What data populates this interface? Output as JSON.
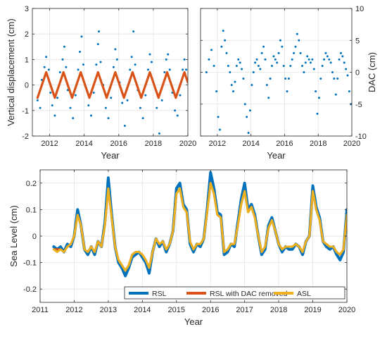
{
  "chart_data": [
    {
      "type": "scatter",
      "panel": "top-left",
      "xlabel": "Year",
      "ylabel": "Vertical displacement (cm)",
      "xlim": [
        2011,
        2020
      ],
      "ylim": [
        -2,
        3
      ],
      "xticks": [
        2012,
        2014,
        2016,
        2018,
        2020
      ],
      "yticks": [
        -2,
        -1,
        0,
        1,
        2,
        3
      ],
      "grid": true,
      "series": [
        {
          "role": "observations",
          "marker": "dot",
          "color": "#0072BD",
          "data": [
            [
              2011.3,
              -0.6
            ],
            [
              2011.45,
              -0.9
            ],
            [
              2011.55,
              0.2
            ],
            [
              2011.7,
              0.7
            ],
            [
              2011.8,
              1.1
            ],
            [
              2011.95,
              0.6
            ],
            [
              2012.05,
              -0.3
            ],
            [
              2012.15,
              -0.8
            ],
            [
              2012.3,
              -1.2
            ],
            [
              2012.45,
              -0.5
            ],
            [
              2012.6,
              0.5
            ],
            [
              2012.75,
              1.0
            ],
            [
              2012.85,
              1.5
            ],
            [
              2012.95,
              0.7
            ],
            [
              2013.05,
              -0.2
            ],
            [
              2013.2,
              -0.9
            ],
            [
              2013.35,
              -1.3
            ],
            [
              2013.5,
              -0.4
            ],
            [
              2013.65,
              0.6
            ],
            [
              2013.75,
              1.3
            ],
            [
              2013.85,
              1.9
            ],
            [
              2013.95,
              0.8
            ],
            [
              2014.1,
              -0.1
            ],
            [
              2014.25,
              -0.8
            ],
            [
              2014.4,
              -1.2
            ],
            [
              2014.55,
              -0.3
            ],
            [
              2014.7,
              0.8
            ],
            [
              2014.8,
              1.6
            ],
            [
              2014.85,
              2.1
            ],
            [
              2014.95,
              0.9
            ],
            [
              2015.1,
              0.0
            ],
            [
              2015.25,
              -0.9
            ],
            [
              2015.4,
              -1.3
            ],
            [
              2015.55,
              -0.5
            ],
            [
              2015.7,
              0.7
            ],
            [
              2015.8,
              1.4
            ],
            [
              2015.9,
              1.0
            ],
            [
              2016.05,
              0.1
            ],
            [
              2016.2,
              -0.7
            ],
            [
              2016.35,
              -1.6
            ],
            [
              2016.5,
              -0.6
            ],
            [
              2016.65,
              0.6
            ],
            [
              2016.75,
              1.1
            ],
            [
              2016.85,
              2.1
            ],
            [
              2016.95,
              0.8
            ],
            [
              2017.1,
              -0.2
            ],
            [
              2017.25,
              -0.9
            ],
            [
              2017.4,
              -1.3
            ],
            [
              2017.55,
              -0.4
            ],
            [
              2017.7,
              0.6
            ],
            [
              2017.8,
              1.2
            ],
            [
              2017.9,
              0.9
            ],
            [
              2018.05,
              0.0
            ],
            [
              2018.2,
              -0.9
            ],
            [
              2018.35,
              -1.9
            ],
            [
              2018.5,
              -0.6
            ],
            [
              2018.65,
              0.5
            ],
            [
              2018.75,
              1.0
            ],
            [
              2018.85,
              1.2
            ],
            [
              2018.95,
              0.6
            ],
            [
              2019.1,
              -0.3
            ],
            [
              2019.25,
              -1.0
            ],
            [
              2019.4,
              -1.2
            ],
            [
              2019.55,
              -0.4
            ],
            [
              2019.7,
              0.6
            ],
            [
              2019.8,
              1.0
            ],
            [
              2019.9,
              0.6
            ],
            [
              2020.0,
              0.1
            ]
          ]
        },
        {
          "role": "fit",
          "type": "line",
          "color": "#D95319",
          "x": [
            2011.3,
            2011.55,
            2011.8,
            2012.05,
            2012.3,
            2012.55,
            2012.8,
            2013.05,
            2013.3,
            2013.55,
            2013.8,
            2014.05,
            2014.3,
            2014.55,
            2014.8,
            2015.05,
            2015.3,
            2015.55,
            2015.8,
            2016.05,
            2016.3,
            2016.55,
            2016.8,
            2017.05,
            2017.3,
            2017.55,
            2017.8,
            2018.05,
            2018.3,
            2018.55,
            2018.8,
            2019.05,
            2019.3,
            2019.55,
            2019.8,
            2020.0
          ],
          "values": [
            -0.5,
            0.0,
            0.5,
            0.0,
            -0.5,
            0.0,
            0.5,
            0.0,
            -0.5,
            0.0,
            0.5,
            0.0,
            -0.5,
            0.0,
            0.5,
            0.0,
            -0.5,
            0.0,
            0.5,
            0.0,
            -0.5,
            0.0,
            0.5,
            0.0,
            -0.5,
            0.0,
            0.5,
            0.0,
            -0.5,
            0.0,
            0.5,
            0.0,
            -0.5,
            0.0,
            0.5,
            0.1
          ]
        }
      ]
    },
    {
      "type": "scatter",
      "panel": "top-right",
      "xlabel": "Year",
      "ylabel": "DAC (cm)",
      "yaxis_side": "right",
      "xlim": [
        2011,
        2020
      ],
      "ylim": [
        -10,
        10
      ],
      "xticks": [
        2012,
        2014,
        2016,
        2018,
        2020
      ],
      "yticks": [
        -10,
        -5,
        0,
        5,
        10
      ],
      "grid": true,
      "series": [
        {
          "marker": "dot",
          "color": "#0072BD",
          "x": [
            2011.35,
            2011.5,
            2011.65,
            2011.8,
            2011.95,
            2012.05,
            2012.15,
            2012.25,
            2012.35,
            2012.45,
            2012.55,
            2012.65,
            2012.75,
            2012.85,
            2012.95,
            2013.05,
            2013.15,
            2013.25,
            2013.35,
            2013.45,
            2013.55,
            2013.65,
            2013.75,
            2013.85,
            2013.95,
            2014.05,
            2014.15,
            2014.25,
            2014.35,
            2014.45,
            2014.55,
            2014.65,
            2014.75,
            2014.85,
            2014.95,
            2015.05,
            2015.15,
            2015.25,
            2015.35,
            2015.45,
            2015.55,
            2015.65,
            2015.75,
            2015.85,
            2015.95,
            2016.05,
            2016.15,
            2016.25,
            2016.35,
            2016.45,
            2016.55,
            2016.65,
            2016.75,
            2016.85,
            2016.95,
            2017.05,
            2017.15,
            2017.25,
            2017.35,
            2017.45,
            2017.55,
            2017.65,
            2017.75,
            2017.85,
            2017.95,
            2018.05,
            2018.15,
            2018.25,
            2018.35,
            2018.45,
            2018.55,
            2018.65,
            2018.75,
            2018.85,
            2018.95,
            2019.05,
            2019.15,
            2019.25,
            2019.35,
            2019.45,
            2019.55,
            2019.65,
            2019.75,
            2019.85,
            2019.95
          ],
          "values": [
            0,
            2,
            3.5,
            1,
            -3,
            -7,
            -9,
            4,
            6.5,
            5,
            3,
            1,
            0,
            -2,
            -3,
            -1.5,
            1,
            2,
            1.5,
            0.5,
            -1,
            -5,
            -7,
            -9.5,
            -6,
            -2,
            0,
            1.5,
            2,
            1,
            0.5,
            3,
            4,
            2,
            -2,
            -4,
            -1,
            1,
            2.5,
            2,
            1.5,
            3,
            5,
            4,
            1,
            -1,
            -3,
            -1,
            1,
            2,
            3,
            4,
            6,
            5,
            3,
            1,
            0,
            1.5,
            2.5,
            2,
            1.5,
            2,
            0.5,
            -3,
            -6.5,
            -4,
            -1,
            1,
            2,
            3,
            2.5,
            2,
            1.5,
            0,
            -1,
            -3.5,
            -1,
            2,
            3,
            2.5,
            1.5,
            0.5,
            -0.5,
            -3,
            -5
          ]
        }
      ]
    },
    {
      "type": "line",
      "panel": "bottom",
      "xlabel": "Year",
      "ylabel": "Sea Level (cm)",
      "xlim": [
        2011,
        2020
      ],
      "ylim": [
        -0.25,
        0.25
      ],
      "xticks": [
        2011,
        2012,
        2013,
        2014,
        2015,
        2016,
        2017,
        2018,
        2019,
        2020
      ],
      "yticks": [
        -0.2,
        -0.1,
        0,
        0.1,
        0.2
      ],
      "grid": true,
      "legend": "bottom-right",
      "x": [
        2011.4,
        2011.5,
        2011.6,
        2011.7,
        2011.8,
        2011.9,
        2012.0,
        2012.1,
        2012.2,
        2012.3,
        2012.4,
        2012.5,
        2012.6,
        2012.7,
        2012.8,
        2012.9,
        2013.0,
        2013.1,
        2013.2,
        2013.3,
        2013.4,
        2013.5,
        2013.6,
        2013.7,
        2013.8,
        2013.9,
        2014.0,
        2014.1,
        2014.2,
        2014.3,
        2014.4,
        2014.5,
        2014.6,
        2014.7,
        2014.8,
        2014.9,
        2015.0,
        2015.1,
        2015.2,
        2015.3,
        2015.4,
        2015.5,
        2015.6,
        2015.7,
        2015.8,
        2015.9,
        2016.0,
        2016.1,
        2016.2,
        2016.3,
        2016.4,
        2016.5,
        2016.6,
        2016.7,
        2016.8,
        2016.9,
        2017.0,
        2017.1,
        2017.2,
        2017.3,
        2017.4,
        2017.5,
        2017.6,
        2017.7,
        2017.8,
        2017.9,
        2018.0,
        2018.1,
        2018.2,
        2018.3,
        2018.4,
        2018.5,
        2018.6,
        2018.7,
        2018.8,
        2018.9,
        2019.0,
        2019.1,
        2019.2,
        2019.3,
        2019.4,
        2019.5,
        2019.6,
        2019.7,
        2019.8,
        2019.9,
        2020.0
      ],
      "series": [
        {
          "name": "RSL",
          "color": "#0072BD",
          "values": [
            -0.04,
            -0.05,
            -0.04,
            -0.06,
            -0.03,
            -0.04,
            0.0,
            0.1,
            0.04,
            -0.05,
            -0.07,
            -0.04,
            -0.07,
            -0.02,
            -0.04,
            0.05,
            0.22,
            0.08,
            -0.04,
            -0.1,
            -0.12,
            -0.15,
            -0.12,
            -0.08,
            -0.07,
            -0.06,
            -0.08,
            -0.1,
            -0.14,
            -0.06,
            -0.01,
            -0.04,
            -0.02,
            -0.06,
            -0.03,
            0.02,
            0.18,
            0.2,
            0.12,
            0.1,
            -0.03,
            -0.06,
            -0.03,
            -0.04,
            -0.01,
            0.1,
            0.24,
            0.18,
            0.09,
            0.08,
            -0.07,
            -0.06,
            -0.03,
            -0.04,
            0.05,
            0.14,
            0.2,
            0.1,
            0.12,
            0.08,
            0.0,
            -0.07,
            -0.05,
            0.04,
            0.07,
            0.02,
            -0.03,
            -0.06,
            -0.04,
            -0.05,
            -0.05,
            -0.03,
            -0.04,
            -0.07,
            -0.02,
            0.0,
            0.19,
            0.11,
            0.07,
            -0.02,
            -0.04,
            -0.05,
            -0.04,
            -0.07,
            -0.09,
            -0.06,
            0.1
          ]
        },
        {
          "name": "RSL with DAC removed",
          "color": "#D95319",
          "values": [
            -0.05,
            -0.05,
            -0.05,
            -0.06,
            -0.04,
            -0.03,
            0.0,
            0.08,
            0.04,
            -0.05,
            -0.06,
            -0.04,
            -0.06,
            -0.02,
            -0.04,
            0.04,
            0.18,
            0.07,
            -0.04,
            -0.09,
            -0.11,
            -0.13,
            -0.11,
            -0.07,
            -0.06,
            -0.06,
            -0.07,
            -0.09,
            -0.12,
            -0.06,
            -0.01,
            -0.03,
            -0.02,
            -0.05,
            -0.03,
            0.02,
            0.16,
            0.18,
            0.11,
            0.09,
            -0.02,
            -0.05,
            -0.03,
            -0.03,
            -0.01,
            0.09,
            0.2,
            0.16,
            0.08,
            0.07,
            -0.06,
            -0.05,
            -0.03,
            -0.03,
            0.04,
            0.12,
            0.17,
            0.09,
            0.11,
            0.07,
            0.0,
            -0.06,
            -0.04,
            0.03,
            0.06,
            0.02,
            -0.03,
            -0.05,
            -0.04,
            -0.04,
            -0.04,
            -0.03,
            -0.04,
            -0.06,
            -0.02,
            0.0,
            0.17,
            0.1,
            0.06,
            -0.02,
            -0.03,
            -0.04,
            -0.04,
            -0.06,
            -0.07,
            -0.05,
            0.08
          ]
        },
        {
          "name": "ASL",
          "color": "#EDB120",
          "values": [
            -0.05,
            -0.06,
            -0.05,
            -0.06,
            -0.04,
            -0.03,
            0.0,
            0.08,
            0.04,
            -0.05,
            -0.06,
            -0.04,
            -0.06,
            -0.02,
            -0.04,
            0.04,
            0.18,
            0.07,
            -0.04,
            -0.09,
            -0.11,
            -0.13,
            -0.11,
            -0.07,
            -0.06,
            -0.06,
            -0.07,
            -0.09,
            -0.12,
            -0.06,
            -0.01,
            -0.03,
            -0.02,
            -0.05,
            -0.03,
            0.02,
            0.16,
            0.18,
            0.11,
            0.09,
            -0.02,
            -0.05,
            -0.03,
            -0.03,
            -0.01,
            0.09,
            0.2,
            0.16,
            0.08,
            0.07,
            -0.06,
            -0.05,
            -0.03,
            -0.03,
            0.04,
            0.12,
            0.17,
            0.09,
            0.11,
            0.07,
            0.0,
            -0.06,
            -0.04,
            0.03,
            0.06,
            0.02,
            -0.03,
            -0.05,
            -0.04,
            -0.04,
            -0.04,
            -0.03,
            -0.04,
            -0.06,
            -0.02,
            0.0,
            0.17,
            0.1,
            0.06,
            -0.02,
            -0.03,
            -0.04,
            -0.04,
            -0.06,
            -0.07,
            -0.05,
            0.08
          ]
        }
      ]
    }
  ]
}
